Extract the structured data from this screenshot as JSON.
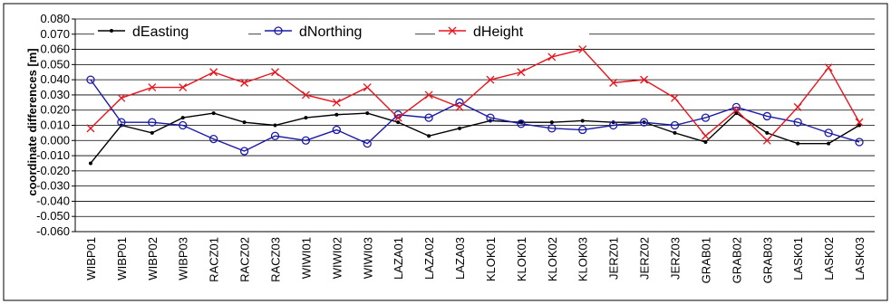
{
  "chart_data": {
    "type": "line",
    "title": "",
    "xlabel": "",
    "ylabel": "coordinate differences [m]",
    "ylim": [
      -0.06,
      0.08
    ],
    "y_ticks": [
      "0.080",
      "0.070",
      "0.060",
      "0.050",
      "0.040",
      "0.030",
      "0.020",
      "0.010",
      "0.000",
      "-0.010",
      "-0.020",
      "-0.030",
      "-0.040",
      "-0.050",
      "-0.060"
    ],
    "grid": "horizontal",
    "legend_position": "top",
    "categories": [
      "WIBP01",
      "WIBP01",
      "WIBP02",
      "WIBP03",
      "RACZ01",
      "RACZ02",
      "RACZ03",
      "WIWI01",
      "WIWI02",
      "WIWI03",
      "LAZA01",
      "LAZA02",
      "LAZA03",
      "KLOK01",
      "KLOK01",
      "KLOK02",
      "KLOK03",
      "JERZ01",
      "JERZ02",
      "JERZ03",
      "GRAB01",
      "GRAB02",
      "GRAB03",
      "LASK01",
      "LASK02",
      "LASK03"
    ],
    "series": [
      {
        "name": "dEasting",
        "color": "#000000",
        "marker": "dot",
        "values": [
          -0.015,
          0.01,
          0.005,
          0.015,
          0.018,
          0.012,
          0.01,
          0.015,
          0.017,
          0.018,
          0.012,
          0.003,
          0.008,
          0.013,
          0.012,
          0.012,
          0.013,
          0.012,
          0.012,
          0.005,
          -0.001,
          0.018,
          0.005,
          -0.002,
          -0.002,
          0.01
        ]
      },
      {
        "name": "dNorthing",
        "color": "#1a1aa6",
        "marker": "circle",
        "values": [
          0.04,
          0.012,
          0.012,
          0.01,
          0.001,
          -0.007,
          0.003,
          0.0,
          0.007,
          -0.002,
          0.017,
          0.015,
          0.025,
          0.015,
          0.011,
          0.008,
          0.007,
          0.01,
          0.012,
          0.01,
          0.015,
          0.022,
          0.016,
          0.012,
          0.005,
          -0.001
        ]
      },
      {
        "name": "dHeight",
        "color": "#e8141e",
        "marker": "x",
        "values": [
          0.008,
          0.028,
          0.035,
          0.035,
          0.045,
          0.038,
          0.045,
          0.03,
          0.025,
          0.035,
          0.015,
          0.03,
          0.022,
          0.04,
          0.045,
          0.055,
          0.06,
          0.038,
          0.04,
          0.028,
          0.003,
          0.02,
          0.0,
          0.022,
          0.048,
          0.012
        ]
      }
    ]
  }
}
